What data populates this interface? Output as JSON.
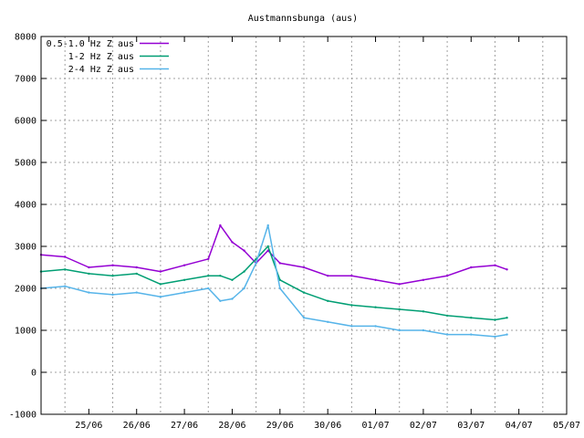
{
  "chart_data": {
    "type": "line",
    "title": "Austmannsbunga (aus)",
    "xlabel": "",
    "ylabel": "",
    "ylim": [
      -1000,
      8000
    ],
    "yticks": [
      -1000,
      0,
      1000,
      2000,
      3000,
      4000,
      5000,
      6000,
      7000,
      8000
    ],
    "xlim": [
      "24/06 12:00",
      "05/07 12:00"
    ],
    "xticks": [
      "25/06",
      "26/06",
      "27/06",
      "28/06",
      "29/06",
      "30/06",
      "01/07",
      "02/07",
      "03/07",
      "04/07",
      "05/07"
    ],
    "grid": true,
    "legend": {
      "position": "top-left"
    },
    "series": [
      {
        "name": "0.5-1.0 Hz Z aus",
        "color": "#9400d3",
        "x": [
          "24/06 12:00",
          "25/06 00:00",
          "25/06 12:00",
          "26/06 00:00",
          "26/06 12:00",
          "27/06 00:00",
          "27/06 12:00",
          "28/06 00:00",
          "28/06 06:00",
          "28/06 12:00",
          "28/06 18:00",
          "29/06 00:00",
          "29/06 06:00",
          "29/06 12:00",
          "30/06 00:00",
          "30/06 12:00",
          "01/07 00:00",
          "01/07 12:00",
          "02/07 00:00",
          "02/07 12:00",
          "03/07 00:00",
          "03/07 12:00",
          "04/07 00:00",
          "04/07 06:00"
        ],
        "y": [
          2800,
          2750,
          2500,
          2550,
          2500,
          2400,
          2550,
          2700,
          3500,
          3100,
          2900,
          2600,
          2900,
          2600,
          2500,
          2300,
          2300,
          2200,
          2100,
          2200,
          2300,
          2500,
          2550,
          2450
        ]
      },
      {
        "name": "1-2 Hz Z aus",
        "color": "#009e73",
        "x": [
          "24/06 12:00",
          "25/06 00:00",
          "25/06 12:00",
          "26/06 00:00",
          "26/06 12:00",
          "27/06 00:00",
          "27/06 12:00",
          "28/06 00:00",
          "28/06 06:00",
          "28/06 12:00",
          "28/06 18:00",
          "29/06 00:00",
          "29/06 06:00",
          "29/06 12:00",
          "30/06 00:00",
          "30/06 12:00",
          "01/07 00:00",
          "01/07 12:00",
          "02/07 00:00",
          "02/07 12:00",
          "03/07 00:00",
          "03/07 12:00",
          "04/07 00:00",
          "04/07 06:00"
        ],
        "y": [
          2400,
          2450,
          2350,
          2300,
          2350,
          2100,
          2200,
          2300,
          2300,
          2200,
          2400,
          2700,
          3000,
          2200,
          1900,
          1700,
          1600,
          1550,
          1500,
          1450,
          1350,
          1300,
          1250,
          1300
        ]
      },
      {
        "name": "2-4 Hz Z aus",
        "color": "#56b4e9",
        "x": [
          "24/06 12:00",
          "25/06 00:00",
          "25/06 12:00",
          "26/06 00:00",
          "26/06 12:00",
          "27/06 00:00",
          "27/06 12:00",
          "28/06 00:00",
          "28/06 06:00",
          "28/06 12:00",
          "28/06 18:00",
          "29/06 00:00",
          "29/06 06:00",
          "29/06 12:00",
          "30/06 00:00",
          "30/06 12:00",
          "01/07 00:00",
          "01/07 12:00",
          "02/07 00:00",
          "02/07 12:00",
          "03/07 00:00",
          "03/07 12:00",
          "04/07 00:00",
          "04/07 06:00"
        ],
        "y": [
          2000,
          2050,
          1900,
          1850,
          1900,
          1800,
          1900,
          2000,
          1700,
          1750,
          2000,
          2600,
          3500,
          2000,
          1300,
          1200,
          1100,
          1100,
          1000,
          1000,
          900,
          900,
          850,
          900
        ]
      }
    ]
  }
}
